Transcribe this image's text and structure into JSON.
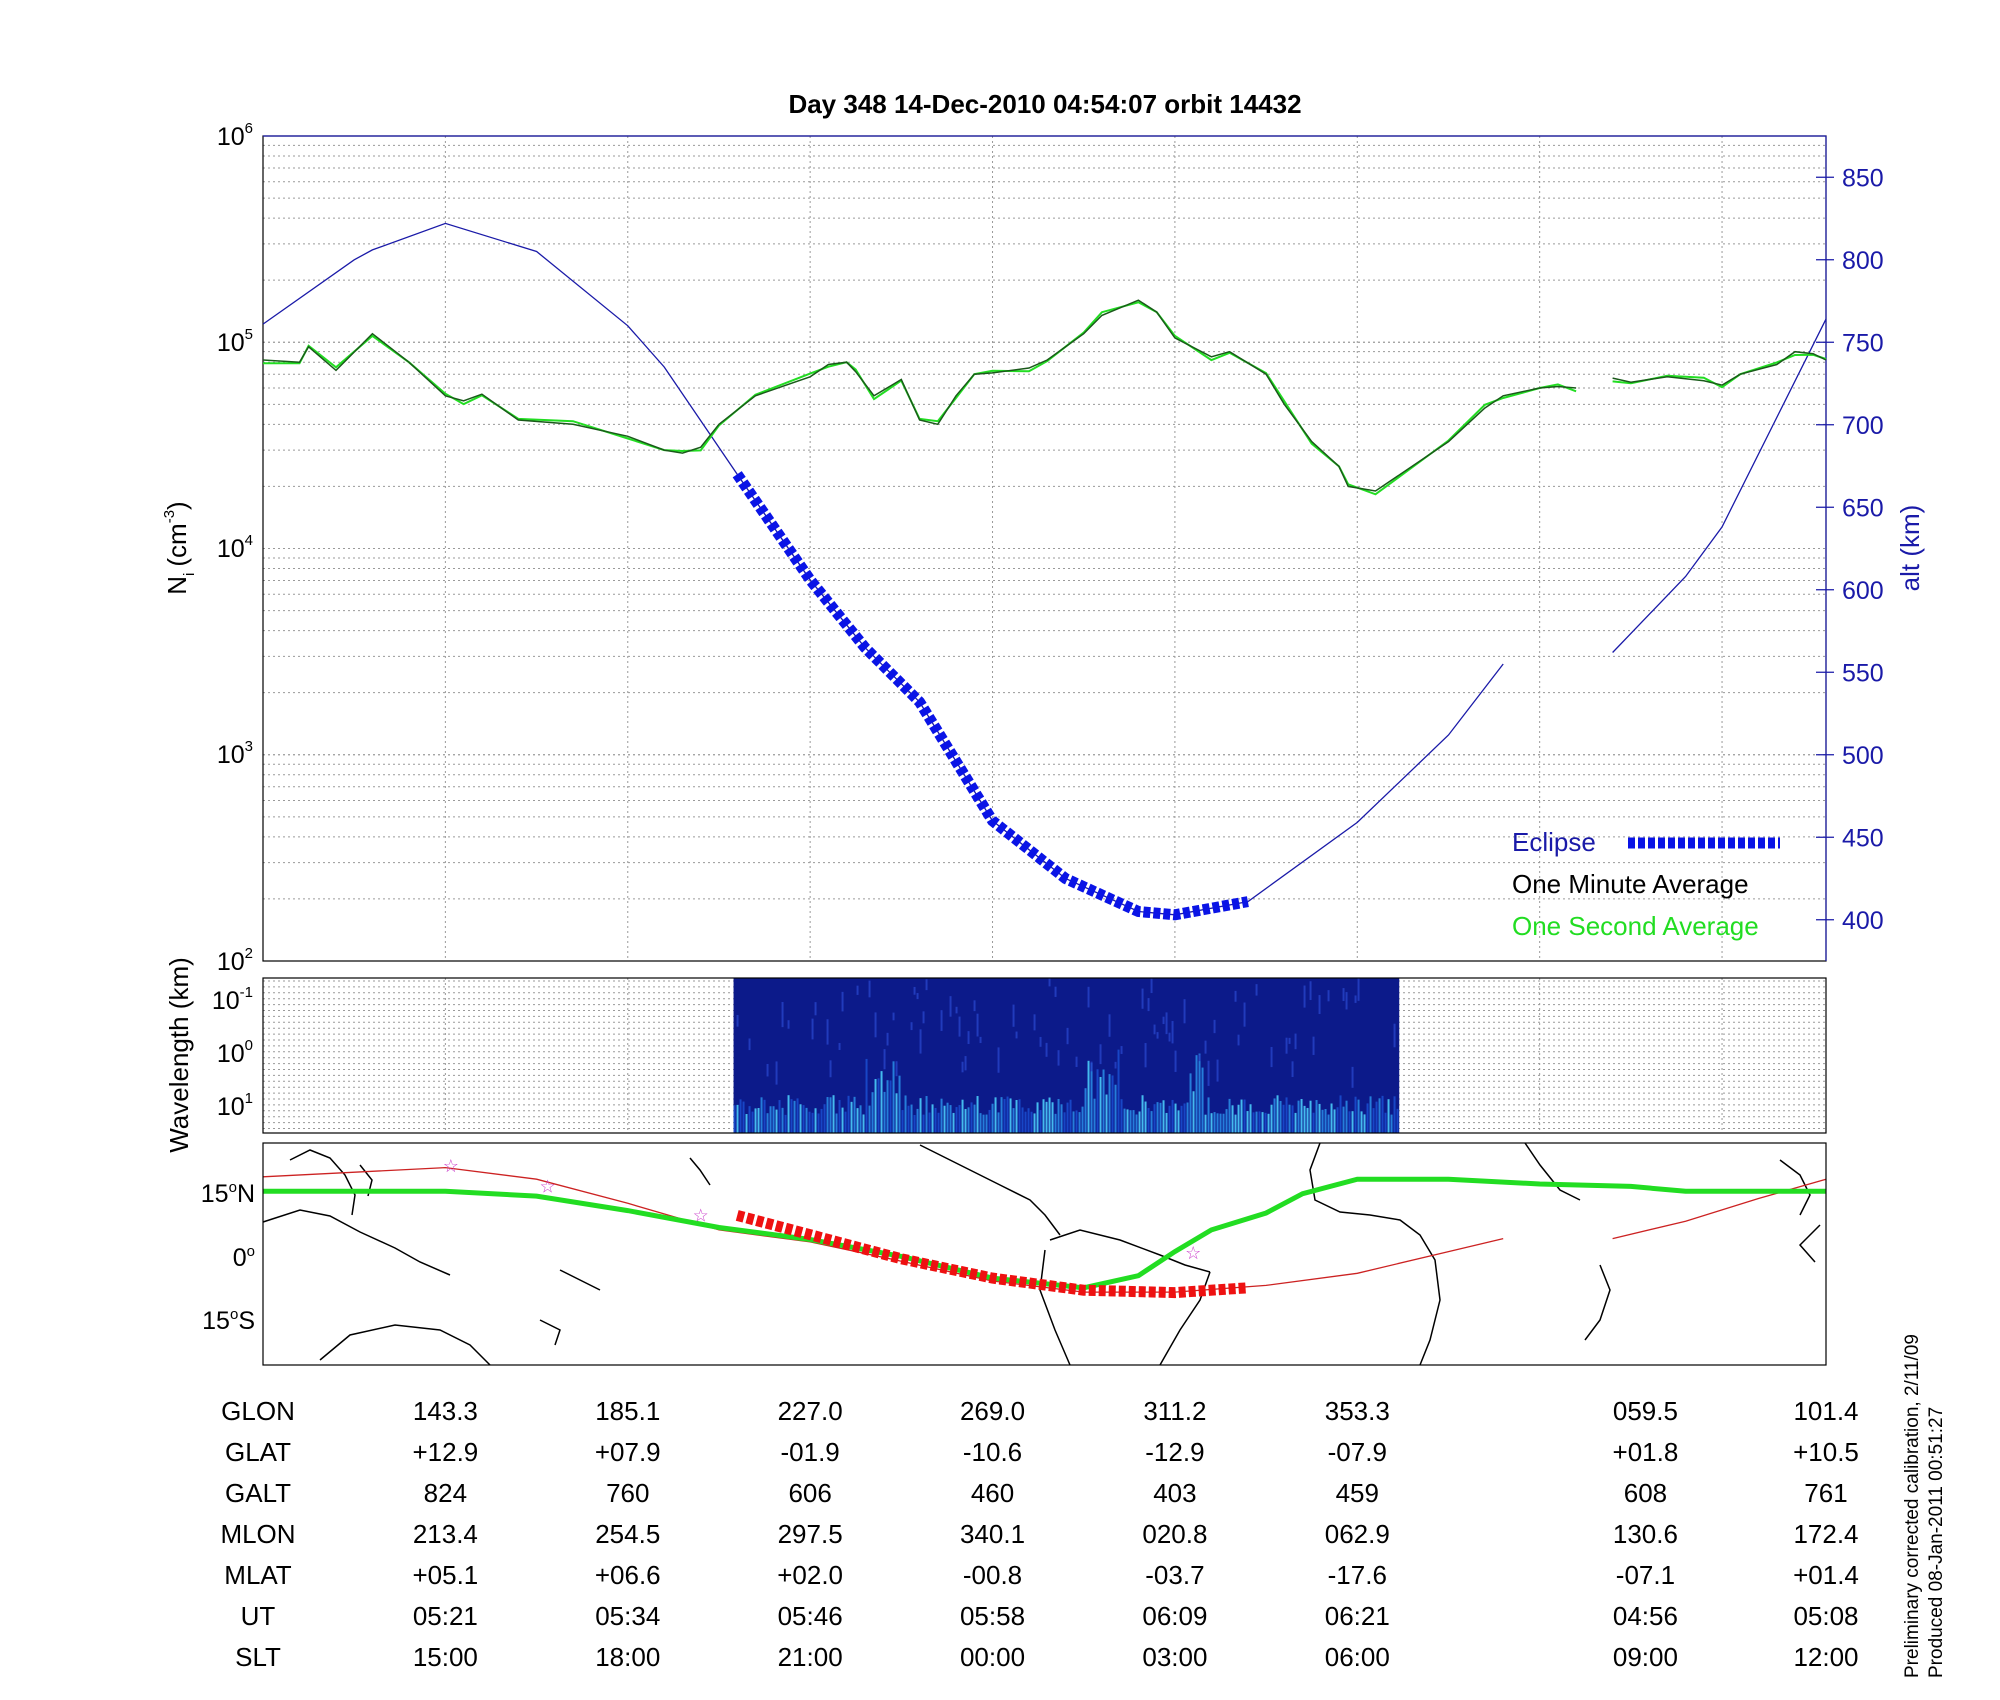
{
  "title": "Day 348  14-Dec-2010 04:54:07   orbit 14432",
  "top_panel": {
    "ylabel_left": "N",
    "ylabel_left_sub": "i",
    "ylabel_left_unit": "(cm",
    "ylabel_left_unit_sup": "-3",
    "ylabel_left_close": ")",
    "ylabel_right": "alt (km)",
    "left_ticks": [
      {
        "base": "10",
        "exp": "6"
      },
      {
        "base": "10",
        "exp": "5"
      },
      {
        "base": "10",
        "exp": "4"
      },
      {
        "base": "10",
        "exp": "3"
      },
      {
        "base": "10",
        "exp": "2"
      }
    ],
    "right_ticks": [
      "850",
      "800",
      "750",
      "700",
      "650",
      "600",
      "550",
      "500",
      "450",
      "400"
    ],
    "legend": {
      "eclipse": "Eclipse",
      "one_minute": "One Minute Average",
      "one_second": "One Second Average"
    }
  },
  "middle_panel": {
    "ylabel": "Wavelength (km)",
    "ticks": [
      {
        "base": "10",
        "exp": "-1"
      },
      {
        "base": "10",
        "exp": "0"
      },
      {
        "base": "10",
        "exp": "1"
      }
    ]
  },
  "map_panel": {
    "lat_labels": [
      {
        "value": "15",
        "suffix": "N"
      },
      {
        "value": "0",
        "suffix": ""
      },
      {
        "value": "15",
        "suffix": "S"
      }
    ]
  },
  "ephemeris": {
    "row_labels": [
      "GLON",
      "GLAT",
      "GALT",
      "MLON",
      "MLAT",
      "UT",
      "SLT"
    ],
    "columns": [
      [
        "143.3",
        "+12.9",
        "824",
        "213.4",
        "+05.1",
        "05:21",
        "15:00"
      ],
      [
        "185.1",
        "+07.9",
        "760",
        "254.5",
        "+06.6",
        "05:34",
        "18:00"
      ],
      [
        "227.0",
        "-01.9",
        "606",
        "297.5",
        "+02.0",
        "05:46",
        "21:00"
      ],
      [
        "269.0",
        "-10.6",
        "460",
        "340.1",
        "-00.8",
        "05:58",
        "00:00"
      ],
      [
        "311.2",
        "-12.9",
        "403",
        "020.8",
        "-03.7",
        "06:09",
        "03:00"
      ],
      [
        "353.3",
        "-07.9",
        "459",
        "062.9",
        "-17.6",
        "06:21",
        "06:00"
      ],
      [
        "059.5",
        "+01.8",
        "608",
        "130.6",
        "-07.1",
        "04:56",
        "09:00"
      ],
      [
        "101.4",
        "+10.5",
        "761",
        "172.4",
        "+01.4",
        "05:08",
        "12:00"
      ]
    ]
  },
  "notes": {
    "line1": "Preliminary corrected calibration, 2/11/09",
    "line2": "Produced 08-Jan-2011 00:51:27"
  },
  "colors": {
    "altitude": "#1a1aa8",
    "eclipse": "#0a14e6",
    "one_minute": "#1a5a1a",
    "one_second": "#22dd22",
    "track": "#cc2222",
    "eclipse_track": "#ee1111",
    "star": "#cc44cc"
  },
  "chart_data": [
    {
      "type": "line",
      "x_domain": [
        0,
        8.57
      ],
      "y_left_scale": "log",
      "y_left_range": [
        100,
        1000000
      ],
      "y_right_range": [
        375,
        875
      ],
      "grid": true,
      "legend_position": "bottom-right",
      "series": [
        {
          "name": "Altitude",
          "axis": "right",
          "points": [
            [
              0,
              761
            ],
            [
              0.5,
              800
            ],
            [
              0.6,
              806
            ],
            [
              1.0,
              822
            ],
            [
              1.5,
              805
            ],
            [
              2.0,
              760
            ],
            [
              2.2,
              735
            ],
            [
              2.6,
              670
            ],
            [
              3.0,
              606
            ],
            [
              3.3,
              565
            ],
            [
              3.6,
              532
            ],
            [
              4.0,
              460
            ],
            [
              4.4,
              425
            ],
            [
              4.8,
              405
            ],
            [
              5.0,
              403
            ],
            [
              5.4,
              411
            ],
            [
              6.0,
              459
            ],
            [
              6.5,
              512
            ],
            [
              6.8,
              555
            ]
          ]
        },
        {
          "name": "Altitude (segment 2)",
          "axis": "right",
          "points": [
            [
              7.4,
              562
            ],
            [
              7.8,
              608
            ],
            [
              8.0,
              638
            ],
            [
              8.57,
              764
            ]
          ]
        },
        {
          "name": "Eclipse",
          "axis": "right",
          "points": [
            [
              2.6,
              670
            ],
            [
              3.0,
              606
            ],
            [
              3.3,
              565
            ],
            [
              3.6,
              532
            ],
            [
              4.0,
              460
            ],
            [
              4.4,
              425
            ],
            [
              4.8,
              405
            ],
            [
              5.0,
              403
            ],
            [
              5.4,
              411
            ]
          ]
        },
        {
          "name": "One Minute Average",
          "axis": "left",
          "points": [
            [
              0,
              82000
            ],
            [
              0.2,
              80000
            ],
            [
              0.25,
              95000
            ],
            [
              0.4,
              73000
            ],
            [
              0.6,
              110000
            ],
            [
              0.8,
              80000
            ],
            [
              1.0,
              55000
            ],
            [
              1.1,
              52000
            ],
            [
              1.2,
              56000
            ],
            [
              1.4,
              42000
            ],
            [
              1.7,
              40000
            ],
            [
              2.0,
              35000
            ],
            [
              2.2,
              30000
            ],
            [
              2.3,
              29000
            ],
            [
              2.4,
              31000
            ],
            [
              2.5,
              40000
            ],
            [
              2.7,
              55000
            ],
            [
              3.0,
              68000
            ],
            [
              3.1,
              78000
            ],
            [
              3.2,
              80000
            ],
            [
              3.25,
              72000
            ],
            [
              3.35,
              55000
            ],
            [
              3.5,
              66000
            ],
            [
              3.6,
              42000
            ],
            [
              3.7,
              40000
            ],
            [
              3.8,
              55000
            ],
            [
              3.9,
              70000
            ],
            [
              4.0,
              71000
            ],
            [
              4.2,
              75000
            ],
            [
              4.3,
              82000
            ],
            [
              4.5,
              110000
            ],
            [
              4.6,
              135000
            ],
            [
              4.8,
              160000
            ],
            [
              4.9,
              140000
            ],
            [
              5.0,
              105000
            ],
            [
              5.2,
              85000
            ],
            [
              5.3,
              90000
            ],
            [
              5.5,
              70000
            ],
            [
              5.6,
              50000
            ],
            [
              5.75,
              33000
            ],
            [
              5.9,
              25000
            ],
            [
              5.95,
              20000
            ],
            [
              6.1,
              19000
            ],
            [
              6.3,
              25000
            ],
            [
              6.5,
              33000
            ],
            [
              6.7,
              48000
            ],
            [
              6.8,
              55000
            ],
            [
              7.0,
              60000
            ],
            [
              7.1,
              61000
            ],
            [
              7.2,
              60000
            ]
          ]
        },
        {
          "name": "One Minute Average (segment 2)",
          "axis": "left",
          "points": [
            [
              7.4,
              67000
            ],
            [
              7.5,
              64000
            ],
            [
              7.7,
              68000
            ],
            [
              7.9,
              65000
            ],
            [
              8.0,
              62000
            ],
            [
              8.1,
              70000
            ],
            [
              8.3,
              78000
            ],
            [
              8.4,
              90000
            ],
            [
              8.5,
              88000
            ],
            [
              8.57,
              82000
            ]
          ]
        }
      ]
    },
    {
      "type": "heatmap",
      "colormap": "blue",
      "active_x_range": [
        2.58,
        6.23
      ]
    },
    {
      "type": "scatter",
      "y_range": [
        -28,
        18
      ],
      "series": [
        {
          "name": "Ground track",
          "points": [
            [
              0,
              11
            ],
            [
              1.0,
              12.9
            ],
            [
              1.5,
              10.5
            ],
            [
              2.0,
              5.5
            ],
            [
              2.5,
              0
            ],
            [
              3.0,
              -2.5
            ],
            [
              3.5,
              -6.5
            ],
            [
              4.0,
              -10.6
            ],
            [
              4.5,
              -12.9
            ],
            [
              5.0,
              -12.9
            ],
            [
              5.5,
              -11.5
            ],
            [
              6.0,
              -9
            ],
            [
              6.5,
              -4.5
            ],
            [
              6.8,
              -1.8
            ]
          ]
        },
        {
          "name": "Ground track (segment 2)",
          "points": [
            [
              7.4,
              -1.8
            ],
            [
              7.8,
              1.8
            ],
            [
              8.2,
              6.5
            ],
            [
              8.57,
              10.5
            ]
          ]
        },
        {
          "name": "Magnetic equator",
          "points": [
            [
              0,
              8
            ],
            [
              1.0,
              8
            ],
            [
              1.5,
              7
            ],
            [
              2.0,
              4
            ],
            [
              2.5,
              0.5
            ],
            [
              3.0,
              -2
            ],
            [
              3.5,
              -5.5
            ],
            [
              4.0,
              -10
            ],
            [
              4.5,
              -12
            ],
            [
              4.8,
              -9.5
            ],
            [
              5.0,
              -4.5
            ],
            [
              5.2,
              0
            ],
            [
              5.5,
              3.5
            ],
            [
              5.7,
              7.5
            ],
            [
              6.0,
              10.5
            ],
            [
              6.5,
              10.5
            ],
            [
              7.0,
              9.5
            ],
            [
              7.5,
              9
            ],
            [
              7.8,
              8
            ],
            [
              8.2,
              8
            ],
            [
              8.57,
              8
            ]
          ]
        },
        {
          "name": "Eclipse track",
          "points": [
            [
              2.6,
              3
            ],
            [
              3.0,
              -1
            ],
            [
              3.5,
              -6
            ],
            [
              4.0,
              -10
            ],
            [
              4.5,
              -12.5
            ],
            [
              5.0,
              -13
            ],
            [
              5.4,
              -12
            ]
          ]
        },
        {
          "name": "Stars",
          "points": [
            [
              1.03,
              13.2
            ],
            [
              1.56,
              9.0
            ],
            [
              2.4,
              3
            ],
            [
              5.1,
              -4.8
            ]
          ]
        }
      ]
    }
  ]
}
